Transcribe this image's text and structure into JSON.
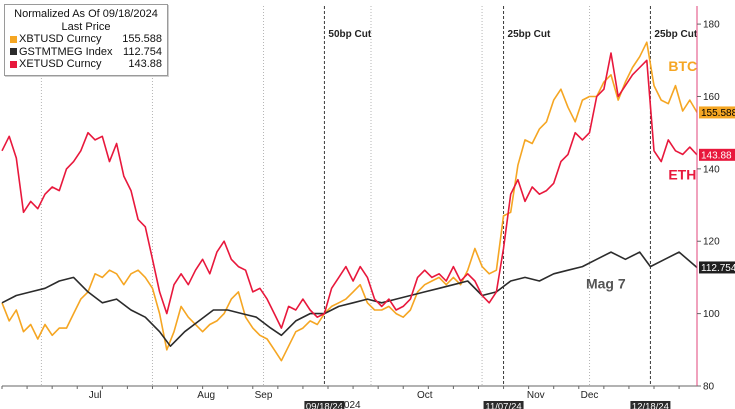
{
  "legend": {
    "title": "Normalized As Of 09/18/2024",
    "subtitle": "Last Price",
    "items": [
      {
        "name": "XBTUSD Curncy",
        "value": "155.588",
        "color": "#f5a623"
      },
      {
        "name": "GSTMTMEG Index",
        "value": "112.754",
        "color": "#2b2b2b"
      },
      {
        "name": "XETUSD Curncy",
        "value": "143.88",
        "color": "#e8183c"
      }
    ]
  },
  "chart_data": {
    "type": "line",
    "title": "",
    "xlabel": "",
    "ylabel": "",
    "x_range": [
      "2024-06-20",
      "2024-12-31"
    ],
    "ylim": [
      80,
      185
    ],
    "y_ticks": [
      80,
      100,
      120,
      140,
      160,
      180
    ],
    "y_tick_labels": [
      "80",
      "100",
      "120",
      "140",
      "160",
      "180"
    ],
    "y_axis_side": "right",
    "grid": "vertical dotted at month starts",
    "x_ticks": [
      {
        "date": "2024-07-16",
        "label": "Jul"
      },
      {
        "date": "2024-08-16",
        "label": "Aug"
      },
      {
        "date": "2024-09-01",
        "label": "Sep"
      },
      {
        "date": "2024-10-16",
        "label": "Oct"
      },
      {
        "date": "2024-11-16",
        "label": "Nov"
      },
      {
        "date": "2024-12-01",
        "label": "Dec"
      }
    ],
    "month_gridlines": [
      "2024-07-01",
      "2024-08-01",
      "2024-09-01",
      "2024-10-01",
      "2024-11-01",
      "2024-12-01"
    ],
    "year_label": {
      "date": "2024-09-25",
      "label": "2024"
    },
    "events": [
      {
        "date": "2024-09-18",
        "label": "50bp Cut",
        "date_label": "09/18/24"
      },
      {
        "date": "2024-11-07",
        "label": "25bp Cut",
        "date_label": "11/07/24"
      },
      {
        "date": "2024-12-18",
        "label": "25bp Cut",
        "date_label": "12/18/24"
      }
    ],
    "series_labels": [
      {
        "name": "BTC",
        "color": "#f5a623",
        "date": "2024-12-23",
        "y": 167
      },
      {
        "name": "ETH",
        "color": "#e8183c",
        "date": "2024-12-23",
        "y": 137
      },
      {
        "name": "Mag 7",
        "color": "#555555",
        "date": "2024-11-30",
        "y": 107
      }
    ],
    "last_value_tags": [
      {
        "text": "155.588",
        "y": 155.588,
        "color": "#f5a623",
        "text_color": "#000000"
      },
      {
        "text": "143.88",
        "y": 143.88,
        "color": "#e8183c",
        "text_color": "#ffffff"
      },
      {
        "text": "112.754",
        "y": 112.754,
        "color": "#1f1f1f",
        "text_color": "#ffffff"
      }
    ],
    "series": [
      {
        "name": "XBTUSD Curncy",
        "color": "#f5a623",
        "points": [
          [
            "2024-06-20",
            103
          ],
          [
            "2024-06-22",
            98
          ],
          [
            "2024-06-24",
            101
          ],
          [
            "2024-06-26",
            95
          ],
          [
            "2024-06-28",
            97
          ],
          [
            "2024-06-30",
            93
          ],
          [
            "2024-07-02",
            97
          ],
          [
            "2024-07-04",
            94
          ],
          [
            "2024-07-06",
            96
          ],
          [
            "2024-07-08",
            96
          ],
          [
            "2024-07-10",
            100
          ],
          [
            "2024-07-12",
            104
          ],
          [
            "2024-07-14",
            106
          ],
          [
            "2024-07-16",
            111
          ],
          [
            "2024-07-18",
            110
          ],
          [
            "2024-07-20",
            112
          ],
          [
            "2024-07-22",
            111
          ],
          [
            "2024-07-24",
            108
          ],
          [
            "2024-07-26",
            111
          ],
          [
            "2024-07-28",
            112
          ],
          [
            "2024-07-30",
            110
          ],
          [
            "2024-08-01",
            107
          ],
          [
            "2024-08-03",
            100
          ],
          [
            "2024-08-05",
            90
          ],
          [
            "2024-08-07",
            95
          ],
          [
            "2024-08-09",
            102
          ],
          [
            "2024-08-11",
            99
          ],
          [
            "2024-08-13",
            97
          ],
          [
            "2024-08-15",
            95
          ],
          [
            "2024-08-17",
            97
          ],
          [
            "2024-08-19",
            98
          ],
          [
            "2024-08-21",
            100
          ],
          [
            "2024-08-23",
            104
          ],
          [
            "2024-08-25",
            106
          ],
          [
            "2024-08-27",
            99
          ],
          [
            "2024-08-29",
            96
          ],
          [
            "2024-08-31",
            94
          ],
          [
            "2024-09-02",
            93
          ],
          [
            "2024-09-04",
            90
          ],
          [
            "2024-09-06",
            87
          ],
          [
            "2024-09-08",
            91
          ],
          [
            "2024-09-10",
            95
          ],
          [
            "2024-09-12",
            96
          ],
          [
            "2024-09-14",
            98
          ],
          [
            "2024-09-16",
            97
          ],
          [
            "2024-09-18",
            100
          ],
          [
            "2024-09-20",
            102
          ],
          [
            "2024-09-22",
            103
          ],
          [
            "2024-09-24",
            104
          ],
          [
            "2024-09-26",
            106
          ],
          [
            "2024-09-28",
            108
          ],
          [
            "2024-09-30",
            103
          ],
          [
            "2024-10-02",
            101
          ],
          [
            "2024-10-04",
            101
          ],
          [
            "2024-10-06",
            102
          ],
          [
            "2024-10-08",
            100
          ],
          [
            "2024-10-10",
            99
          ],
          [
            "2024-10-12",
            101
          ],
          [
            "2024-10-14",
            106
          ],
          [
            "2024-10-16",
            108
          ],
          [
            "2024-10-18",
            109
          ],
          [
            "2024-10-20",
            110
          ],
          [
            "2024-10-22",
            108
          ],
          [
            "2024-10-24",
            110
          ],
          [
            "2024-10-26",
            108
          ],
          [
            "2024-10-28",
            112
          ],
          [
            "2024-10-30",
            118
          ],
          [
            "2024-11-01",
            113
          ],
          [
            "2024-11-03",
            111
          ],
          [
            "2024-11-05",
            112
          ],
          [
            "2024-11-07",
            127
          ],
          [
            "2024-11-09",
            128
          ],
          [
            "2024-11-11",
            141
          ],
          [
            "2024-11-13",
            148
          ],
          [
            "2024-11-15",
            147
          ],
          [
            "2024-11-17",
            151
          ],
          [
            "2024-11-19",
            153
          ],
          [
            "2024-11-21",
            159
          ],
          [
            "2024-11-23",
            162
          ],
          [
            "2024-11-25",
            157
          ],
          [
            "2024-11-27",
            153
          ],
          [
            "2024-11-29",
            159
          ],
          [
            "2024-12-01",
            160
          ],
          [
            "2024-12-03",
            160
          ],
          [
            "2024-12-05",
            164
          ],
          [
            "2024-12-07",
            166
          ],
          [
            "2024-12-09",
            159
          ],
          [
            "2024-12-11",
            164
          ],
          [
            "2024-12-13",
            168
          ],
          [
            "2024-12-15",
            171
          ],
          [
            "2024-12-17",
            175
          ],
          [
            "2024-12-19",
            163
          ],
          [
            "2024-12-21",
            159
          ],
          [
            "2024-12-23",
            158
          ],
          [
            "2024-12-25",
            163
          ],
          [
            "2024-12-27",
            156
          ],
          [
            "2024-12-29",
            159
          ],
          [
            "2024-12-31",
            155.588
          ]
        ]
      },
      {
        "name": "GSTMTMEG Index",
        "color": "#2b2b2b",
        "points": [
          [
            "2024-06-20",
            103
          ],
          [
            "2024-06-24",
            105
          ],
          [
            "2024-06-28",
            106
          ],
          [
            "2024-07-02",
            107
          ],
          [
            "2024-07-06",
            109
          ],
          [
            "2024-07-10",
            110
          ],
          [
            "2024-07-14",
            106
          ],
          [
            "2024-07-18",
            103
          ],
          [
            "2024-07-22",
            104
          ],
          [
            "2024-07-26",
            101
          ],
          [
            "2024-07-30",
            99
          ],
          [
            "2024-08-03",
            95
          ],
          [
            "2024-08-06",
            91
          ],
          [
            "2024-08-10",
            95
          ],
          [
            "2024-08-14",
            98
          ],
          [
            "2024-08-18",
            101
          ],
          [
            "2024-08-22",
            101
          ],
          [
            "2024-08-26",
            100
          ],
          [
            "2024-08-30",
            99
          ],
          [
            "2024-09-03",
            96
          ],
          [
            "2024-09-06",
            94
          ],
          [
            "2024-09-10",
            98
          ],
          [
            "2024-09-14",
            100
          ],
          [
            "2024-09-18",
            100
          ],
          [
            "2024-09-22",
            102
          ],
          [
            "2024-09-26",
            103
          ],
          [
            "2024-09-30",
            104
          ],
          [
            "2024-10-04",
            103
          ],
          [
            "2024-10-08",
            104
          ],
          [
            "2024-10-12",
            105
          ],
          [
            "2024-10-16",
            106
          ],
          [
            "2024-10-20",
            107
          ],
          [
            "2024-10-24",
            108
          ],
          [
            "2024-10-28",
            109
          ],
          [
            "2024-11-01",
            105
          ],
          [
            "2024-11-05",
            106
          ],
          [
            "2024-11-09",
            109
          ],
          [
            "2024-11-13",
            110
          ],
          [
            "2024-11-17",
            109
          ],
          [
            "2024-11-21",
            111
          ],
          [
            "2024-11-25",
            112
          ],
          [
            "2024-11-29",
            113
          ],
          [
            "2024-12-03",
            115
          ],
          [
            "2024-12-07",
            117
          ],
          [
            "2024-12-11",
            115
          ],
          [
            "2024-12-15",
            117
          ],
          [
            "2024-12-18",
            113
          ],
          [
            "2024-12-22",
            115
          ],
          [
            "2024-12-26",
            117
          ],
          [
            "2024-12-31",
            112.754
          ]
        ]
      },
      {
        "name": "XETUSD Curncy",
        "color": "#e8183c",
        "points": [
          [
            "2024-06-20",
            145
          ],
          [
            "2024-06-22",
            149
          ],
          [
            "2024-06-24",
            143
          ],
          [
            "2024-06-26",
            128
          ],
          [
            "2024-06-28",
            131
          ],
          [
            "2024-06-30",
            129
          ],
          [
            "2024-07-02",
            133
          ],
          [
            "2024-07-04",
            135
          ],
          [
            "2024-07-06",
            134
          ],
          [
            "2024-07-08",
            140
          ],
          [
            "2024-07-10",
            142
          ],
          [
            "2024-07-12",
            145
          ],
          [
            "2024-07-14",
            150
          ],
          [
            "2024-07-16",
            148
          ],
          [
            "2024-07-18",
            149
          ],
          [
            "2024-07-20",
            142
          ],
          [
            "2024-07-22",
            147
          ],
          [
            "2024-07-24",
            138
          ],
          [
            "2024-07-26",
            134
          ],
          [
            "2024-07-28",
            126
          ],
          [
            "2024-07-30",
            124
          ],
          [
            "2024-08-01",
            115
          ],
          [
            "2024-08-03",
            106
          ],
          [
            "2024-08-05",
            100
          ],
          [
            "2024-08-07",
            108
          ],
          [
            "2024-08-09",
            111
          ],
          [
            "2024-08-11",
            108
          ],
          [
            "2024-08-13",
            112
          ],
          [
            "2024-08-15",
            115
          ],
          [
            "2024-08-17",
            111
          ],
          [
            "2024-08-19",
            117
          ],
          [
            "2024-08-21",
            120
          ],
          [
            "2024-08-23",
            115
          ],
          [
            "2024-08-25",
            113
          ],
          [
            "2024-08-27",
            112
          ],
          [
            "2024-08-29",
            106
          ],
          [
            "2024-08-31",
            107
          ],
          [
            "2024-09-02",
            104
          ],
          [
            "2024-09-04",
            100
          ],
          [
            "2024-09-06",
            96
          ],
          [
            "2024-09-08",
            102
          ],
          [
            "2024-09-10",
            101
          ],
          [
            "2024-09-12",
            104
          ],
          [
            "2024-09-14",
            101
          ],
          [
            "2024-09-16",
            99
          ],
          [
            "2024-09-18",
            100
          ],
          [
            "2024-09-20",
            107
          ],
          [
            "2024-09-22",
            110
          ],
          [
            "2024-09-24",
            113
          ],
          [
            "2024-09-26",
            109
          ],
          [
            "2024-09-28",
            113
          ],
          [
            "2024-09-30",
            110
          ],
          [
            "2024-10-02",
            104
          ],
          [
            "2024-10-04",
            102
          ],
          [
            "2024-10-06",
            104
          ],
          [
            "2024-10-08",
            101
          ],
          [
            "2024-10-10",
            102
          ],
          [
            "2024-10-12",
            104
          ],
          [
            "2024-10-14",
            110
          ],
          [
            "2024-10-16",
            112
          ],
          [
            "2024-10-18",
            110
          ],
          [
            "2024-10-20",
            111
          ],
          [
            "2024-10-22",
            109
          ],
          [
            "2024-10-24",
            113
          ],
          [
            "2024-10-26",
            109
          ],
          [
            "2024-10-28",
            111
          ],
          [
            "2024-10-30",
            109
          ],
          [
            "2024-11-01",
            105
          ],
          [
            "2024-11-03",
            103
          ],
          [
            "2024-11-05",
            106
          ],
          [
            "2024-11-07",
            118
          ],
          [
            "2024-11-09",
            133
          ],
          [
            "2024-11-11",
            137
          ],
          [
            "2024-11-13",
            131
          ],
          [
            "2024-11-15",
            135
          ],
          [
            "2024-11-17",
            133
          ],
          [
            "2024-11-19",
            134
          ],
          [
            "2024-11-21",
            136
          ],
          [
            "2024-11-23",
            142
          ],
          [
            "2024-11-25",
            144
          ],
          [
            "2024-11-27",
            150
          ],
          [
            "2024-11-29",
            148
          ],
          [
            "2024-12-01",
            150
          ],
          [
            "2024-12-03",
            160
          ],
          [
            "2024-12-05",
            162
          ],
          [
            "2024-12-07",
            172
          ],
          [
            "2024-12-09",
            160
          ],
          [
            "2024-12-11",
            163
          ],
          [
            "2024-12-13",
            166
          ],
          [
            "2024-12-15",
            168
          ],
          [
            "2024-12-17",
            170
          ],
          [
            "2024-12-19",
            145
          ],
          [
            "2024-12-21",
            142
          ],
          [
            "2024-12-23",
            148
          ],
          [
            "2024-12-25",
            145
          ],
          [
            "2024-12-27",
            144
          ],
          [
            "2024-12-29",
            146
          ],
          [
            "2024-12-31",
            143.88
          ]
        ]
      }
    ]
  }
}
